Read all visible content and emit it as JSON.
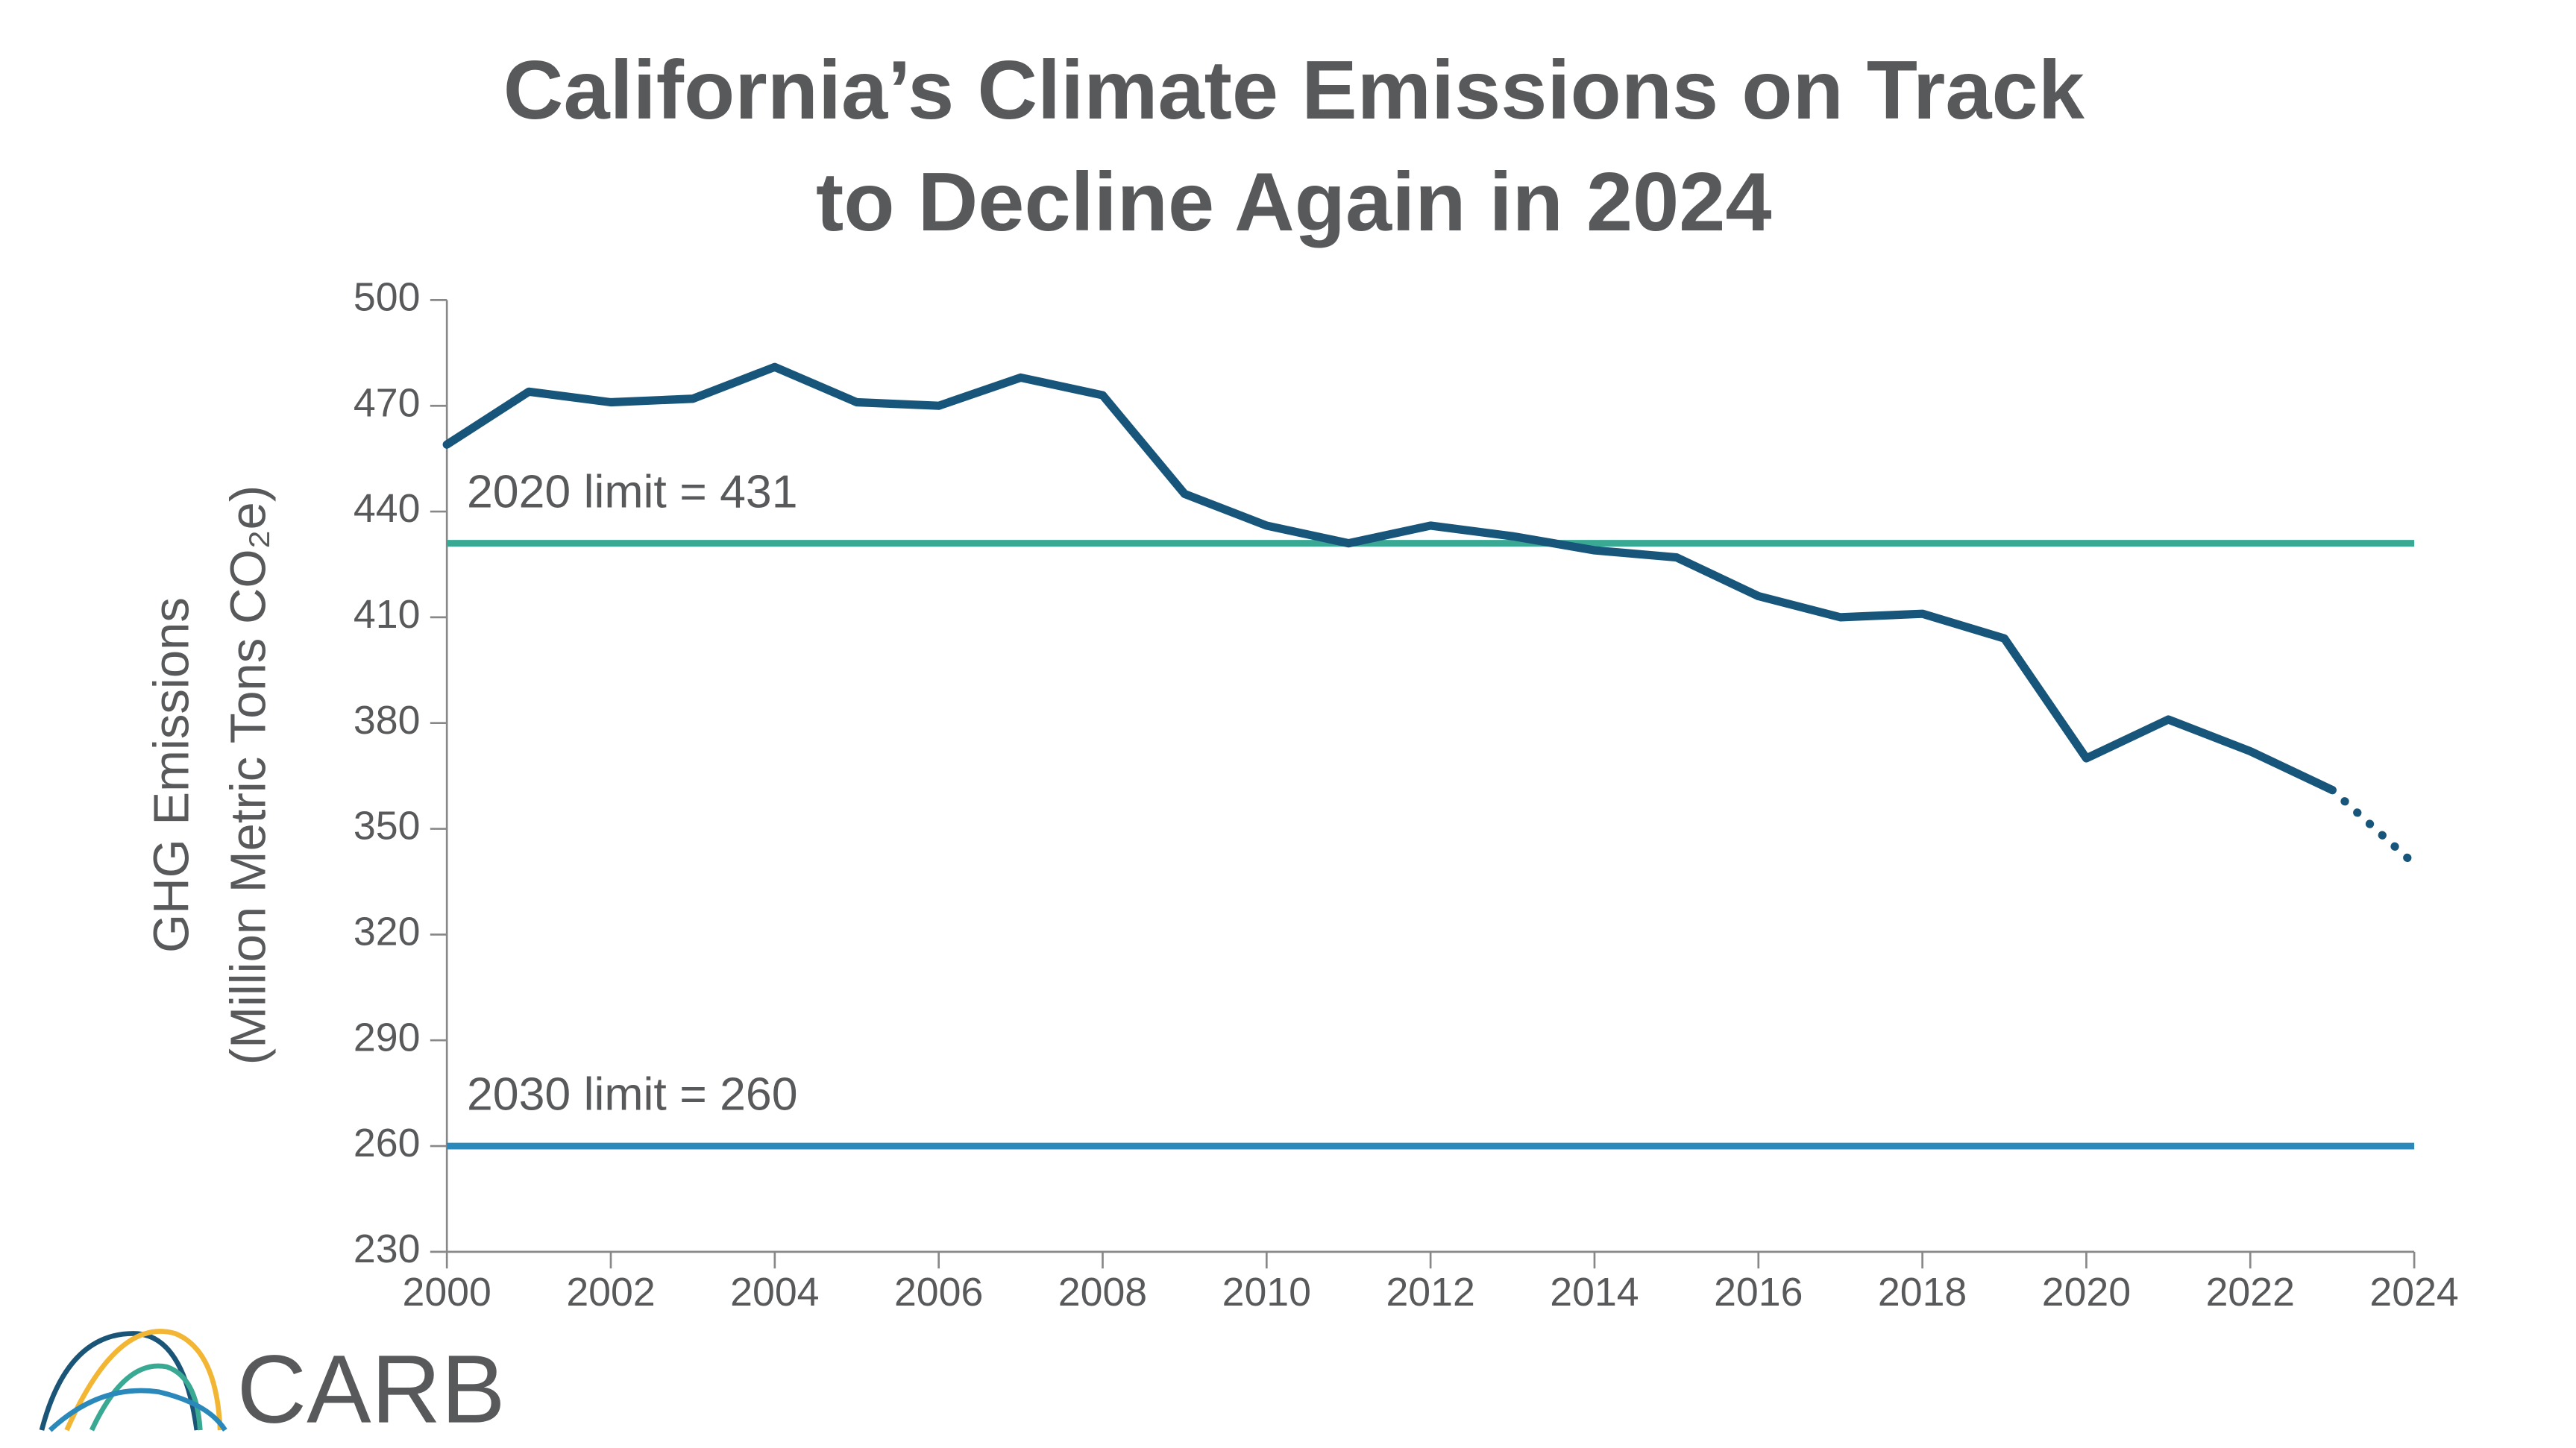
{
  "chart_data": {
    "type": "line",
    "title": [
      "California’s Climate Emissions on Track",
      "to Decline Again in 2024"
    ],
    "y_label": [
      "GHG Emissions",
      "(Million Metric Tons CO₂e)"
    ],
    "x": [
      2000,
      2001,
      2002,
      2003,
      2004,
      2005,
      2006,
      2007,
      2008,
      2009,
      2010,
      2011,
      2012,
      2013,
      2014,
      2015,
      2016,
      2017,
      2018,
      2019,
      2020,
      2021,
      2022,
      2023,
      2024
    ],
    "series": [
      {
        "color": "#17557a",
        "dash": "solid",
        "values": [
          459,
          474,
          471,
          472,
          481,
          471,
          470,
          478,
          473,
          445,
          436,
          431,
          436,
          433,
          429,
          427,
          416,
          410,
          411,
          404,
          370,
          381,
          372,
          361,
          null
        ]
      },
      {
        "color": "#17557a",
        "dash": "dotted",
        "values": [
          null,
          null,
          null,
          null,
          null,
          null,
          null,
          null,
          null,
          null,
          null,
          null,
          null,
          null,
          null,
          null,
          null,
          null,
          null,
          null,
          null,
          null,
          null,
          361,
          340
        ]
      }
    ],
    "hlines": [
      {
        "value": 431,
        "label": "2020 limit = 431",
        "color": "#3aa994"
      },
      {
        "value": 260,
        "label": "2030 limit = 260",
        "color": "#2b88bb"
      }
    ],
    "xlim": [
      2000,
      2024
    ],
    "xticks": [
      2000,
      2002,
      2004,
      2006,
      2008,
      2010,
      2012,
      2014,
      2016,
      2018,
      2020,
      2022,
      2024
    ],
    "ylim": [
      230,
      500
    ],
    "yticks": [
      230,
      260,
      290,
      320,
      350,
      380,
      410,
      440,
      470,
      500
    ],
    "grid": false,
    "logo": "CARB"
  }
}
